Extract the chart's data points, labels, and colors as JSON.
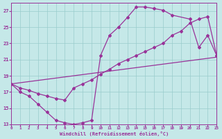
{
  "xlabel": "Windchill (Refroidissement éolien,°C)",
  "xlim": [
    0,
    23
  ],
  "ylim": [
    13,
    28
  ],
  "xticks": [
    0,
    1,
    2,
    3,
    4,
    5,
    6,
    7,
    8,
    9,
    10,
    11,
    12,
    13,
    14,
    15,
    16,
    17,
    18,
    19,
    20,
    21,
    22,
    23
  ],
  "yticks": [
    13,
    15,
    17,
    19,
    21,
    23,
    25,
    27
  ],
  "background_color": "#c5e8e8",
  "grid_color": "#99cccc",
  "line_color": "#993399",
  "curve1_x": [
    0,
    1,
    2,
    3,
    4,
    5,
    6,
    7,
    8,
    9,
    10,
    11,
    12,
    13,
    14,
    15,
    16,
    17,
    18,
    20,
    21,
    22,
    23
  ],
  "curve1_y": [
    18.0,
    17.0,
    16.5,
    15.5,
    14.5,
    13.5,
    13.2,
    13.0,
    13.2,
    13.5,
    21.5,
    24.0,
    25.0,
    26.2,
    27.5,
    27.5,
    27.3,
    27.1,
    26.5,
    26.0,
    22.5,
    24.0,
    21.5
  ],
  "curve2_x": [
    0,
    1,
    2,
    3,
    4,
    5,
    6,
    7,
    8,
    9,
    10,
    11,
    12,
    13,
    14,
    15,
    16,
    17,
    18,
    19,
    20,
    21,
    22,
    23
  ],
  "curve2_y": [
    18.0,
    17.5,
    17.2,
    16.8,
    16.5,
    16.2,
    16.0,
    17.5,
    18.0,
    18.5,
    19.2,
    19.8,
    20.5,
    21.0,
    21.5,
    22.0,
    22.5,
    23.0,
    24.0,
    24.5,
    25.5,
    26.0,
    26.3,
    21.5
  ],
  "line3_x": [
    0,
    23
  ],
  "line3_y": [
    18.0,
    21.3
  ],
  "marker": "D",
  "markersize": 2.0,
  "linewidth": 0.9
}
